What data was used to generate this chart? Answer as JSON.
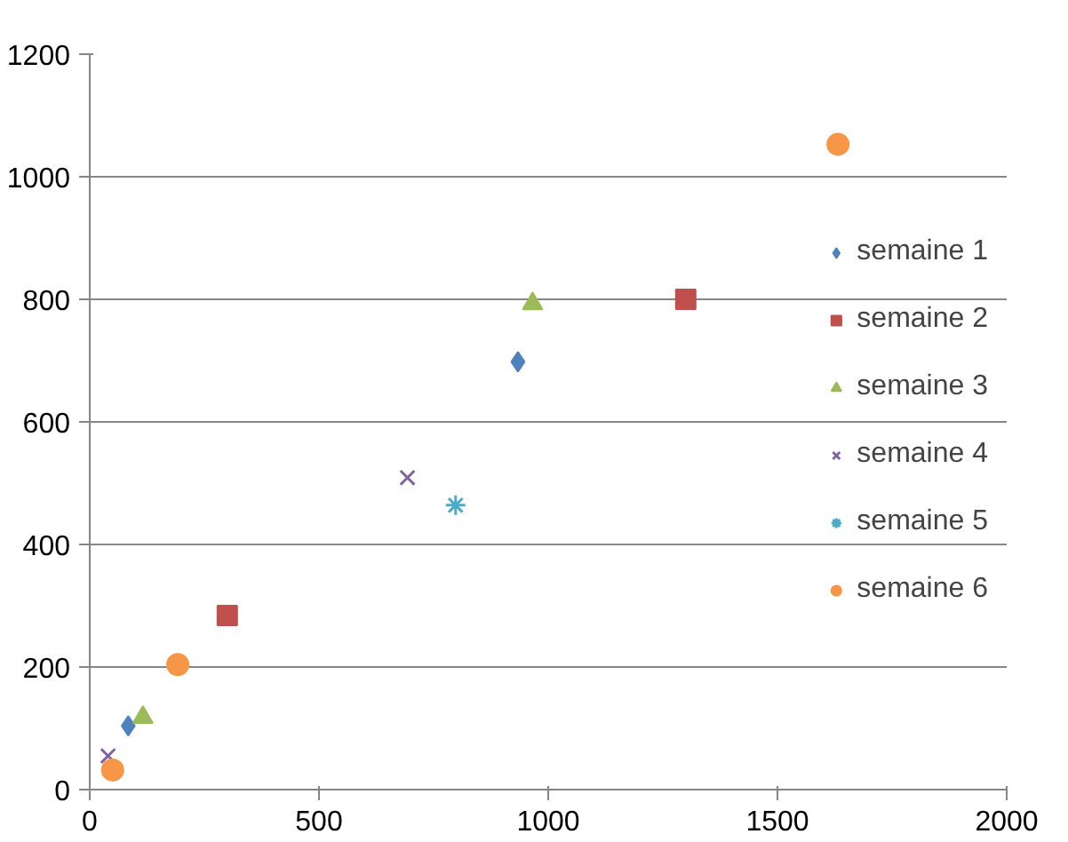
{
  "chart_data": {
    "type": "scatter",
    "xlim": [
      0,
      2000
    ],
    "ylim": [
      0,
      1200
    ],
    "xticks": [
      0,
      500,
      1000,
      1500,
      2000
    ],
    "yticks": [
      0,
      200,
      400,
      600,
      800,
      1000,
      1200
    ],
    "grid": "y",
    "legend": "right",
    "series": [
      {
        "name": "semaine 1",
        "color": "#4f81bd",
        "marker": "diamond",
        "x": [
          84,
          934
        ],
        "values": [
          104,
          698
        ]
      },
      {
        "name": "semaine 2",
        "color": "#c0504d",
        "marker": "square",
        "x": [
          300,
          1300
        ],
        "values": [
          284,
          800
        ]
      },
      {
        "name": "semaine 3",
        "color": "#9bbb59",
        "marker": "triangle",
        "x": [
          116,
          966
        ],
        "values": [
          118,
          793
        ]
      },
      {
        "name": "semaine 4",
        "color": "#8064a2",
        "marker": "x",
        "x": [
          40,
          693
        ],
        "values": [
          55,
          509
        ]
      },
      {
        "name": "semaine 5",
        "color": "#4bacc6",
        "marker": "cross",
        "x": [
          798
        ],
        "values": [
          464
        ]
      },
      {
        "name": "semaine 6",
        "color": "#f79646",
        "marker": "circle",
        "x": [
          50,
          192,
          1632
        ],
        "values": [
          32,
          204,
          1053
        ]
      }
    ]
  }
}
